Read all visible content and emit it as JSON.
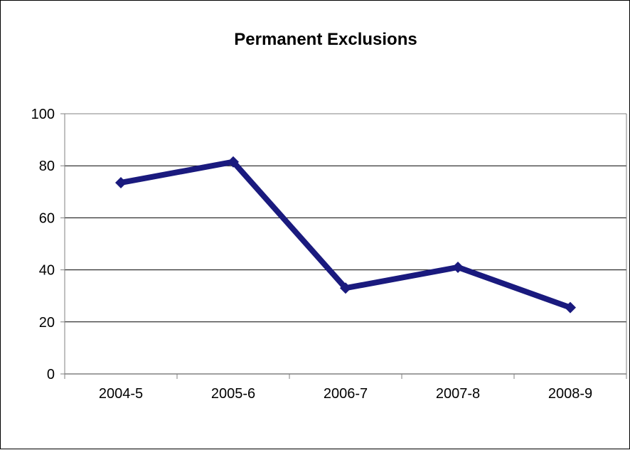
{
  "chart_data": {
    "type": "line",
    "title": "Permanent Exclusions",
    "xlabel": "",
    "ylabel": "",
    "categories": [
      "2004-5",
      "2005-6",
      "2006-7",
      "2007-8",
      "2008-9"
    ],
    "series": [
      {
        "values": [
          73.5,
          81.5,
          33,
          41,
          25.5
        ]
      }
    ],
    "ylim": [
      0,
      100
    ],
    "yticks": [
      "0",
      "20",
      "40",
      "60",
      "80",
      "100"
    ],
    "grid": "horizontal",
    "legend": "none",
    "colors": {
      "line": "#1a1a7e",
      "grid": "#000000",
      "plot_border": "#808080"
    }
  }
}
